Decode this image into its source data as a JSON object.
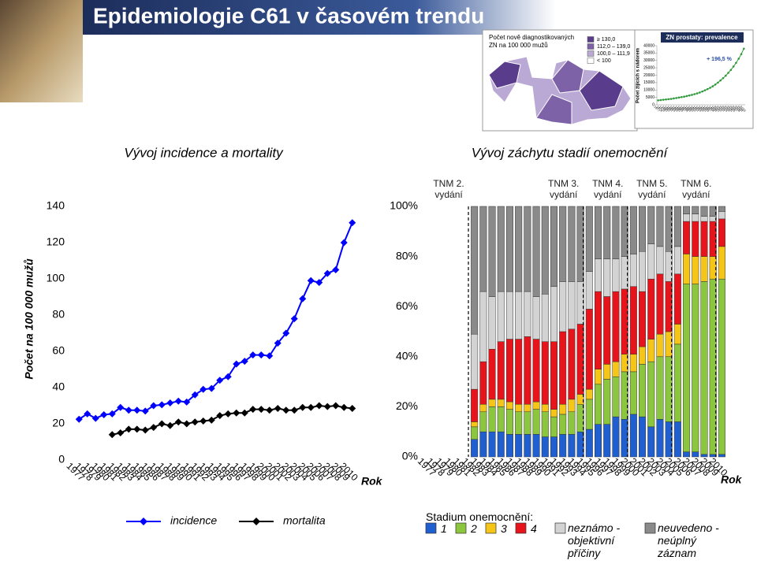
{
  "header": {
    "title": "Epidemiologie C61 v časovém trendu"
  },
  "map_inset": {
    "title_lines": [
      "Počet nově diagnostikovaných",
      "ZN na 100 000 mužů"
    ],
    "legend": [
      {
        "label": "≥ 130,0",
        "color": "#5a3c8c"
      },
      {
        "label": "112,0 – 139,0",
        "color": "#7d62a8"
      },
      {
        "label": "100,0 – 111,9",
        "color": "#b9a9d4"
      },
      {
        "label": "< 100",
        "color": "#ffffff"
      }
    ]
  },
  "chart_data": [
    {
      "type": "line",
      "title": "Vývoj incidence a mortality",
      "y_label": "Počet na 100 000 mužů",
      "x_label": "Rok",
      "categories": [
        "1977",
        "1978",
        "1979",
        "1980",
        "1981",
        "1982",
        "1983",
        "1984",
        "1985",
        "1986",
        "1987",
        "1988",
        "1989",
        "1990",
        "1991",
        "1992",
        "1993",
        "1994",
        "1995",
        "1996",
        "1997",
        "1998",
        "1999",
        "2000",
        "2001",
        "2002",
        "2003",
        "2004",
        "2005",
        "2006",
        "2007",
        "2008",
        "2009",
        "2010"
      ],
      "series": [
        {
          "name": "incidence",
          "color": "#0000ff",
          "values": [
            22.5,
            25.5,
            23,
            25,
            25.5,
            29,
            27.5,
            27.5,
            27,
            30,
            30.5,
            31.5,
            32.5,
            32,
            36,
            39,
            39.5,
            44,
            46,
            53,
            54.5,
            58,
            58,
            57.5,
            64.5,
            70,
            78,
            89,
            99,
            98,
            103,
            105,
            120,
            131
          ]
        },
        {
          "name": "mortalita",
          "color": "#000000",
          "values": [
            null,
            null,
            null,
            null,
            14,
            15,
            17,
            17,
            16.5,
            18,
            20,
            19,
            21,
            20,
            21,
            21.5,
            22,
            24.5,
            25.5,
            26,
            26,
            28,
            28,
            27.5,
            28.5,
            27.5,
            27.5,
            29,
            29,
            30,
            29.5,
            30,
            29,
            28.5
          ]
        }
      ],
      "ylim": [
        0,
        140
      ],
      "yticks": [
        0,
        20,
        40,
        60,
        80,
        100,
        120,
        140
      ]
    },
    {
      "type": "stacked_bar",
      "title": "Vývoj záchytu stadií onemocnění",
      "x_label": "Rok",
      "legend_title": "Stadium onemocnění:",
      "categories": [
        "1977",
        "1978",
        "1979",
        "1980",
        "1981",
        "1982",
        "1983",
        "1984",
        "1985",
        "1986",
        "1987",
        "1988",
        "1989",
        "1990",
        "1991",
        "1992",
        "1993",
        "1994",
        "1995",
        "1996",
        "1997",
        "1998",
        "1999",
        "2000",
        "2001",
        "2002",
        "2003",
        "2004",
        "2005",
        "2006",
        "2007",
        "2008",
        "2009",
        "2010"
      ],
      "series": [
        {
          "name": "1",
          "color": "#1f5fd0",
          "values": [
            null,
            null,
            null,
            null,
            null,
            7,
            10,
            10,
            10,
            9,
            9,
            9,
            9,
            8,
            8,
            9,
            9,
            10,
            11,
            13,
            13,
            16,
            15,
            17,
            16,
            12,
            15,
            14,
            14,
            2,
            2,
            1,
            1,
            1
          ]
        },
        {
          "name": "2",
          "color": "#8cc63f",
          "values": [
            null,
            null,
            null,
            null,
            null,
            5,
            8,
            10,
            10,
            10,
            9,
            9,
            10,
            10,
            8,
            8,
            9,
            11,
            12,
            16,
            18,
            16,
            19,
            17,
            21,
            26,
            25,
            26,
            31,
            67,
            67,
            69,
            70,
            70
          ]
        },
        {
          "name": "3",
          "color": "#f5c518",
          "values": [
            null,
            null,
            null,
            null,
            null,
            2,
            3,
            3,
            3,
            3,
            3,
            3,
            3,
            3,
            3,
            4,
            5,
            4,
            4,
            6,
            6,
            6,
            7,
            7,
            7,
            9,
            9,
            10,
            8,
            12,
            11,
            10,
            9,
            13
          ]
        },
        {
          "name": "4",
          "color": "#e8141c",
          "values": [
            null,
            null,
            null,
            null,
            null,
            13,
            17,
            20,
            23,
            25,
            26,
            27,
            25,
            25,
            27,
            29,
            28,
            28,
            32,
            31,
            27,
            28,
            26,
            27,
            22,
            24,
            24,
            20,
            20,
            13,
            14,
            14,
            14,
            11
          ]
        },
        {
          "name": "neznámo - objektivní příčiny",
          "color": "#d3d3d3",
          "values": [
            null,
            null,
            null,
            null,
            null,
            22,
            28,
            21,
            20,
            19,
            19,
            18,
            17,
            19,
            22,
            20,
            19,
            17,
            15,
            13,
            15,
            13,
            13,
            13,
            16,
            14,
            11,
            12,
            11,
            3,
            3,
            2,
            2,
            3
          ]
        },
        {
          "name": "neuvedeno - neúplný záznam",
          "color": "#8a8a8a",
          "values": [
            null,
            null,
            null,
            null,
            null,
            51,
            34,
            36,
            34,
            34,
            34,
            34,
            36,
            35,
            32,
            30,
            30,
            30,
            26,
            21,
            21,
            21,
            20,
            19,
            18,
            15,
            16,
            18,
            16,
            3,
            3,
            4,
            4,
            2
          ]
        }
      ],
      "ylim": [
        0,
        100
      ],
      "yticks": [
        {
          "value": 0,
          "label": "0%"
        },
        {
          "value": 20,
          "label": "20%"
        },
        {
          "value": 40,
          "label": "40%"
        },
        {
          "value": 60,
          "label": "60%"
        },
        {
          "value": 80,
          "label": "80%"
        },
        {
          "value": 100,
          "label": "100%"
        }
      ],
      "annotations": [
        {
          "lines": [
            "TNM 2.",
            "vydání"
          ],
          "category": "1982"
        },
        {
          "lines": [
            "TNM 3.",
            "vydání"
          ],
          "category": "1995"
        },
        {
          "lines": [
            "TNM 4.",
            "vydání"
          ],
          "category": "2000"
        },
        {
          "lines": [
            "TNM 5.",
            "vydání"
          ],
          "category": "2005"
        },
        {
          "lines": [
            "TNM 6.",
            "vydání"
          ],
          "category": "2010"
        }
      ]
    },
    {
      "type": "line",
      "title": "ZN prostaty: prevalence",
      "y_label": "Počet žijících s nádorem",
      "annotation": "+ 196,5 %",
      "categories": [
        "1977",
        "1978",
        "1979",
        "1980",
        "1981",
        "1982",
        "1983",
        "1984",
        "1985",
        "1986",
        "1987",
        "1988",
        "1989",
        "1990",
        "1991",
        "1992",
        "1993",
        "1994",
        "1995",
        "1996",
        "1997",
        "1998",
        "1999",
        "2000",
        "2001",
        "2002",
        "2003",
        "2004",
        "2005",
        "2006",
        "2007",
        "2008",
        "2009",
        "2010"
      ],
      "series": [
        {
          "color": "#2f9a3a",
          "values": [
            3000,
            3200,
            3400,
            3600,
            3800,
            4000,
            4300,
            4600,
            4900,
            5200,
            5500,
            5900,
            6300,
            6700,
            7200,
            7700,
            8300,
            9000,
            9800,
            10600,
            11500,
            12500,
            13700,
            15000,
            16500,
            18000,
            19700,
            21600,
            23600,
            25900,
            28400,
            31200,
            34300,
            38000
          ]
        }
      ],
      "ylim": [
        0,
        40000
      ],
      "yticks": [
        0,
        5000,
        10000,
        15000,
        20000,
        25000,
        30000,
        35000,
        40000
      ]
    }
  ]
}
